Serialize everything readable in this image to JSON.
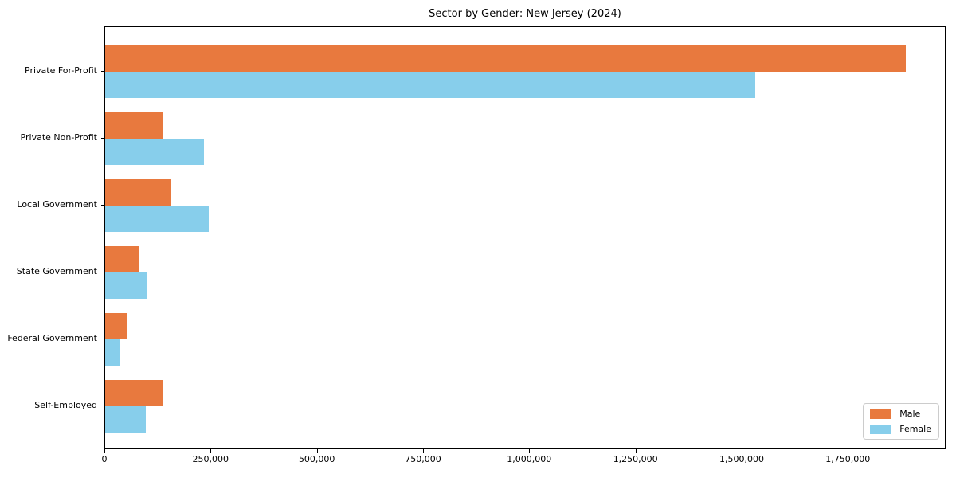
{
  "title": "Sector by Gender: New Jersey (2024)",
  "legend": {
    "male_label": "Male",
    "female_label": "Female"
  },
  "colors": {
    "male": "#e8793e",
    "female": "#87ceeb",
    "frame": "#000000",
    "legend_border": "#cccccc"
  },
  "chart_data": {
    "type": "bar",
    "orientation": "horizontal",
    "title": "Sector by Gender: New Jersey (2024)",
    "xlabel": "",
    "ylabel": "",
    "categories": [
      "Private For-Profit",
      "Private Non-Profit",
      "Local Government",
      "State Government",
      "Federal Government",
      "Self-Employed"
    ],
    "series": [
      {
        "name": "Male",
        "color": "#e8793e",
        "values": [
          1884000,
          134000,
          156000,
          81000,
          53000,
          137000
        ]
      },
      {
        "name": "Female",
        "color": "#87ceeb",
        "values": [
          1529000,
          232000,
          243000,
          98000,
          33000,
          96000
        ]
      }
    ],
    "xlim": [
      0,
      1980000
    ],
    "xticks": {
      "values": [
        0,
        250000,
        500000,
        750000,
        1000000,
        1250000,
        1500000,
        1750000
      ],
      "labels": [
        "0",
        "250,000",
        "500,000",
        "750,000",
        "1,000,000",
        "1,250,000",
        "1,500,000",
        "1,750,000"
      ]
    },
    "grid": false,
    "legend_position": "lower right",
    "legend_labels": [
      "Male",
      "Female"
    ]
  }
}
